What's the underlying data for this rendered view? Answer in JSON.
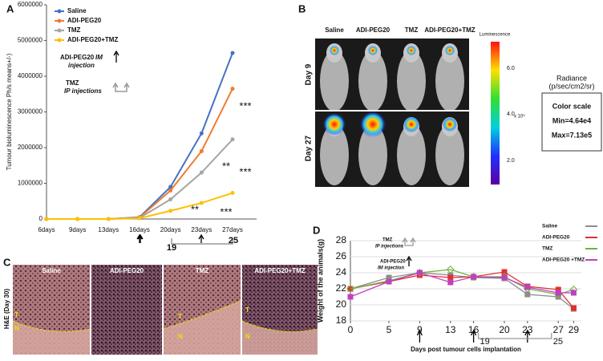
{
  "chart_data": [
    {
      "type": "line",
      "panel": "A",
      "y_label": "Tumour bioluminescence Ph/s means+/-)",
      "categories": [
        "6days",
        "9days",
        "13days",
        "16days",
        "20days",
        "23days",
        "27days"
      ],
      "ylim": [
        0,
        6000000
      ],
      "yticks": [
        0,
        1000000,
        2000000,
        3000000,
        4000000,
        5000000,
        6000000
      ],
      "series": [
        {
          "name": "Saline",
          "color": "#4472c4",
          "values": [
            0,
            0,
            0,
            50000,
            900000,
            2400000,
            4650000
          ]
        },
        {
          "name": "ADI-PEG20",
          "color": "#ed7d31",
          "values": [
            0,
            0,
            0,
            40000,
            800000,
            1900000,
            3650000
          ]
        },
        {
          "name": "TMZ",
          "color": "#a5a5a5",
          "values": [
            0,
            0,
            0,
            30000,
            550000,
            1300000,
            2230000
          ]
        },
        {
          "name": "ADI-PEG20+TMZ",
          "color": "#ffc000",
          "values": [
            0,
            0,
            0,
            20000,
            230000,
            450000,
            730000
          ]
        }
      ],
      "annotations": [
        "**",
        "**",
        "***",
        "***",
        "***"
      ],
      "injection_labels": [
        "ADI-PEG20",
        "IM",
        "injection",
        "TMZ",
        "IP injections",
        "19",
        "25"
      ]
    },
    {
      "type": "line",
      "panel": "D",
      "y_label": "Weight of the animals(g)",
      "x_label": "Days post tumour cells implantation",
      "x": [
        0,
        5,
        9,
        13,
        16,
        20,
        23,
        27,
        29
      ],
      "xlim": [
        0,
        30
      ],
      "xticks": [
        0,
        5,
        9,
        13,
        16,
        20,
        23,
        27,
        29
      ],
      "ylim": [
        18,
        28
      ],
      "yticks": [
        18,
        20,
        22,
        24,
        26,
        28
      ],
      "series": [
        {
          "name": "Saline",
          "color": "#8c8c8c",
          "values": [
            22,
            23.4,
            24,
            23.7,
            23.4,
            23.3,
            21.3,
            21,
            19.5
          ]
        },
        {
          "name": "ADI-PEG20",
          "color": "#e03030",
          "values": [
            22,
            22.9,
            23.7,
            23.4,
            23.5,
            24.1,
            22.3,
            21.9,
            19.6
          ]
        },
        {
          "name": "TMZ",
          "color": "#70b040",
          "values": [
            22,
            23,
            24,
            24.4,
            23.5,
            23.5,
            22,
            21.3,
            21.9
          ]
        },
        {
          "name": "ADI-PEG20 +TMZ",
          "color": "#c040c0",
          "values": [
            21,
            22.9,
            24,
            22.8,
            23.5,
            23.4,
            22.2,
            21.5,
            21.5
          ]
        }
      ],
      "injection_labels": [
        "TMZ",
        "IP injections",
        "ADI-PEG20",
        "IM injection",
        "19",
        "25"
      ]
    }
  ],
  "panel_b": {
    "letter": "B",
    "columns": [
      "Saline",
      "ADI-PEG20",
      "TMZ",
      "ADI-PEG20+TMZ"
    ],
    "rows": [
      "Day 9",
      "Day 27"
    ],
    "colorbar_title": "Luminescence",
    "colorbar_ticks": [
      "6.0",
      "4.0",
      "2.0"
    ],
    "colorbar_unit": "x 10⁵",
    "radiance": "Radiance",
    "radiance_unit": "(p/sec/cm2/sr)",
    "scale": "Color scale",
    "min": "Min=4.64e4",
    "max": "Max=7.13e5"
  },
  "panel_c": {
    "letter": "C",
    "side_label": "H&E (Day 30)",
    "columns": [
      "Saline",
      "ADI-PEG20",
      "TMZ",
      "ADI-PEG20+TMZ"
    ],
    "tumour": "T",
    "normal": "N"
  }
}
